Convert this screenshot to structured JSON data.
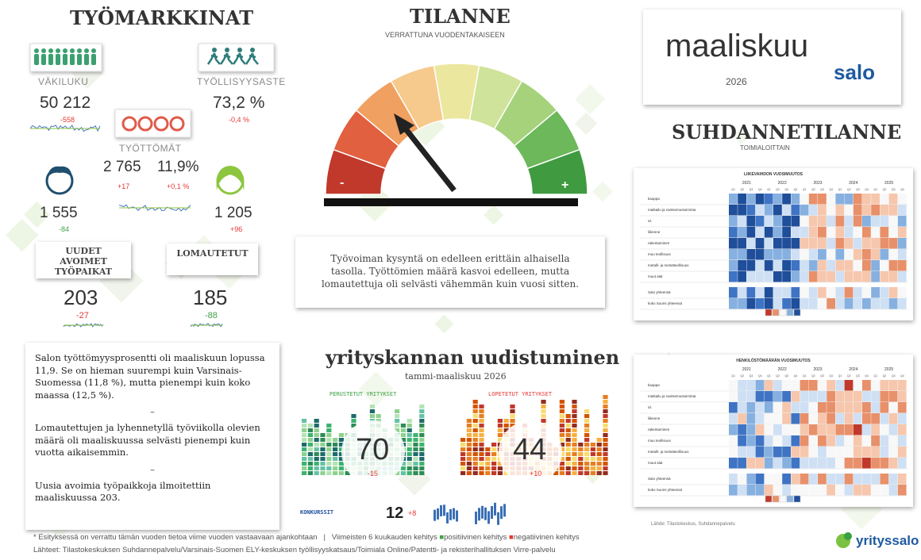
{
  "labour": {
    "title": "TYÖMARKKINAT",
    "population": {
      "label": "VÄKILUKU",
      "value": "50 212",
      "change": "-558"
    },
    "employment_rate": {
      "label": "TYÖLLISYYSASTE",
      "value": "73,2 %",
      "change": "-0,4 %"
    },
    "unemployed": {
      "label": "TYÖTTÖMÄT",
      "count": "2 765",
      "count_change": "+17",
      "rate": "11,9%",
      "rate_change": "+0,1 %"
    },
    "men": {
      "value": "1 555",
      "change": "-84"
    },
    "women": {
      "value": "1 205",
      "change": "+96"
    },
    "vacancies": {
      "label": "UUDET AVOIMET TYÖPAIKAT",
      "value": "203",
      "change": "-27"
    },
    "laid_off": {
      "label": "LOMAUTETUT",
      "value": "185",
      "change": "-88"
    }
  },
  "summary": [
    "Salon työttömyysprosentti oli maaliskuun lopussa 11,9. Se on hieman suurempi kuin Varsinais-Suomessa (11,8 %), mutta pienempi kuin koko maassa (12,5 %).",
    "–",
    "Lomautettujen ja lyhennetyllä työviikolla olevien määrä oli maaliskuussa selvästi pienempi kuin vuotta aikaisemmin.",
    "–",
    "Uusia avoimia työpaikkoja ilmoitettiin maaliskuussa 203."
  ],
  "situation": {
    "title": "TILANNE",
    "subtitle": "VERRATTUNA VUODENTAKAISEEN",
    "minus": "-",
    "plus": "+",
    "text": "Työvoiman kysyntä on edelleen erittäin alhaisella tasolla. Työttömien määrä kasvoi edelleen, mutta lomautettuja oli selvästi vähemmän kuin vuosi sitten."
  },
  "renewal": {
    "title": "yrityskannan uudistuminen",
    "subtitle": "tammi-maaliskuu 2026",
    "founded": {
      "label": "PERUSTETUT YRITYKSET",
      "value": "70",
      "change": "-15"
    },
    "closed": {
      "label": "LOPETETUT YRITYKSET",
      "value": "44",
      "change": "+10"
    },
    "bankruptcies": {
      "label": "KONKURSSIT",
      "value": "12",
      "change": "+8"
    }
  },
  "header": {
    "month": "maaliskuu",
    "year": "2026",
    "logo": "salo"
  },
  "business": {
    "title": "SUHDANNETILANNE",
    "subtitle": "TOIMIALOITTAIN",
    "heatmaps": [
      "LIIKEVAIHDON VUOSIMUUTOS",
      "HENKILÖSTÖMÄÄRÄN VUOSIMUUTOS"
    ],
    "years": [
      "2021",
      "2022",
      "2023",
      "2024",
      "2025"
    ],
    "quarters": [
      "Q1",
      "Q2",
      "Q3",
      "Q4"
    ],
    "rows": [
      "kauppa",
      "matkailu ja ravitsemustoiminta",
      "ict",
      "liikenne",
      "rakentaminen",
      "muu teollisuus",
      "metalli- ja metsäteollisuus",
      "muut alat",
      "Salo yhteensä",
      "koko Suomi yhteensä"
    ],
    "source": "Lähde: Tilastokeskus, Suhdannepalvelu"
  },
  "footer": {
    "note": "* Esityksessä on verrattu tämän vuoden tietoa viime vuoden vastaavaan ajankohtaan",
    "separator": "|",
    "trend": "Viimeisten 6 kuukauden kehitys",
    "positive": "positiivinen kehitys",
    "negative": "negatiivinen kehitys",
    "sources": "Lähteet: Tilastokeskuksen Suhdannepalvelu/Varsinais-Suomen ELY-keskuksen työllisyyskatsaus/Toimiala Online/Patentti- ja rekisterihallituksen Virre-palvelu",
    "logo": "yrityssalo"
  }
}
